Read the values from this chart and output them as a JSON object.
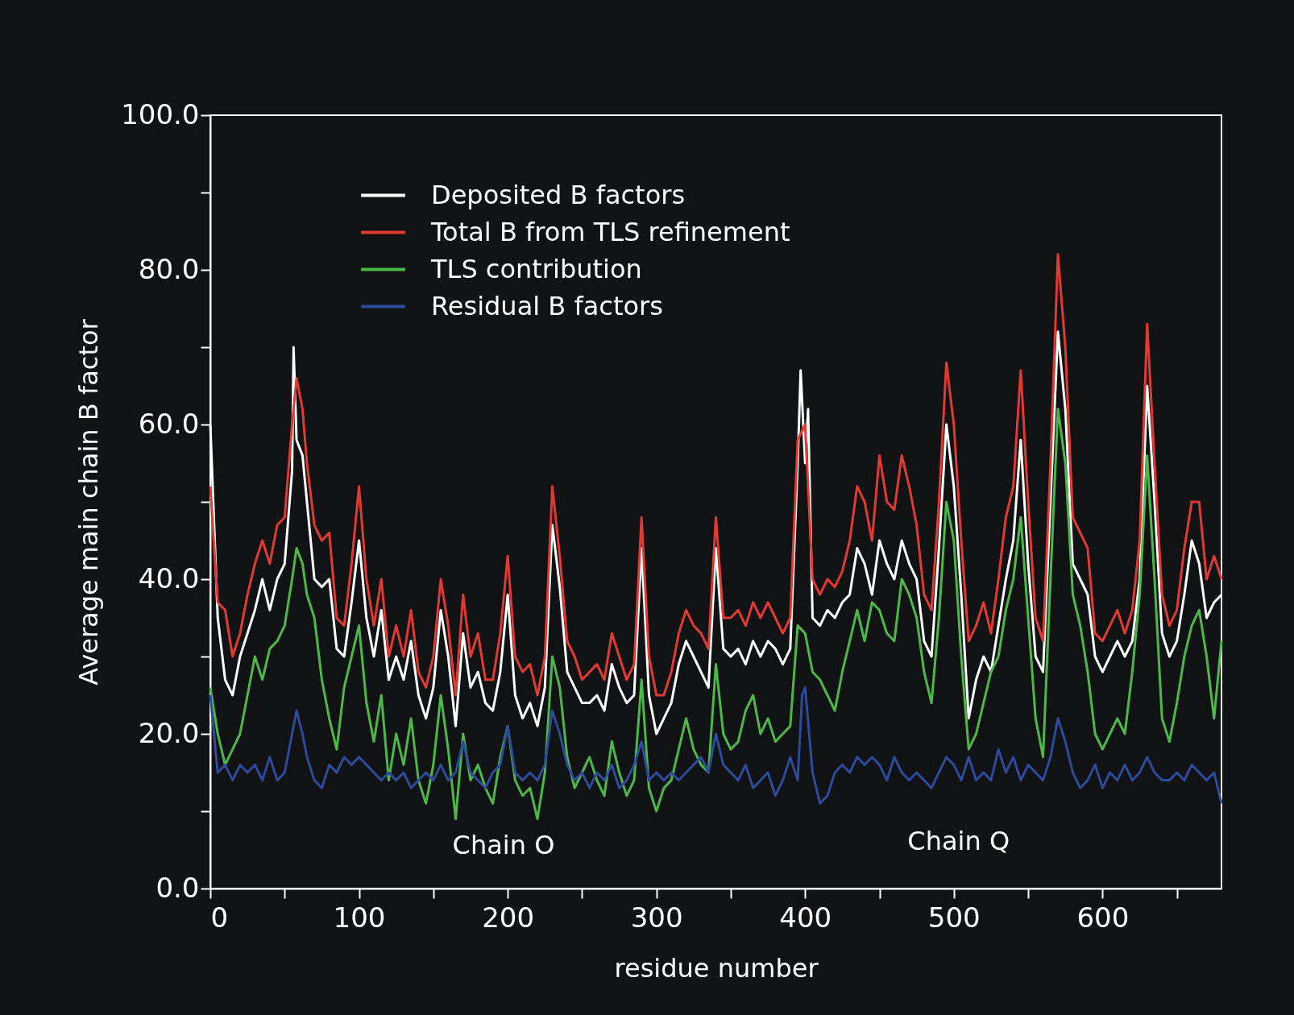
{
  "chart_data": {
    "type": "line",
    "xlabel": "residue number",
    "ylabel": "Average main chain B factor",
    "xlim": [
      0,
      680
    ],
    "xticks": [
      0,
      {
        "value": 50,
        "label": null
      },
      100,
      {
        "value": 150,
        "label": null
      },
      200,
      {
        "value": 250,
        "label": null
      },
      300,
      {
        "value": 350,
        "label": null
      },
      400,
      {
        "value": 450,
        "label": null
      },
      500,
      {
        "value": 550,
        "label": null
      },
      600,
      {
        "value": 650,
        "label": null
      }
    ],
    "ylim": [
      0,
      100
    ],
    "yticks": [
      {
        "value": 0,
        "label": "0.0"
      },
      {
        "value": 10,
        "label": null
      },
      {
        "value": 20,
        "label": "20.0"
      },
      {
        "value": 30,
        "label": null
      },
      {
        "value": 40,
        "label": "40.0"
      },
      {
        "value": 50,
        "label": null
      },
      {
        "value": 60,
        "label": "60.0"
      },
      {
        "value": 70,
        "label": null
      },
      {
        "value": 80,
        "label": "80.0"
      },
      {
        "value": 90,
        "label": null
      },
      {
        "value": 100,
        "label": "100.0"
      }
    ],
    "grid": false,
    "legend": "top left",
    "annotations": [
      "Chain O",
      "Chain Q"
    ],
    "series": [
      {
        "name": "Deposited B factors",
        "color": "#ffffff",
        "x": [
          0,
          5,
          10,
          15,
          20,
          25,
          30,
          35,
          40,
          45,
          50,
          55,
          56,
          58,
          62,
          65,
          70,
          75,
          80,
          85,
          90,
          95,
          100,
          105,
          110,
          115,
          120,
          125,
          130,
          135,
          140,
          145,
          150,
          155,
          160,
          165,
          170,
          175,
          180,
          185,
          190,
          195,
          200,
          205,
          210,
          215,
          220,
          225,
          230,
          235,
          240,
          245,
          250,
          255,
          260,
          265,
          270,
          275,
          280,
          285,
          290,
          295,
          300,
          305,
          310,
          315,
          320,
          325,
          330,
          335,
          340,
          345,
          350,
          355,
          360,
          365,
          370,
          375,
          380,
          385,
          390,
          395,
          397,
          400,
          402,
          405,
          410,
          415,
          420,
          425,
          430,
          435,
          440,
          445,
          450,
          455,
          460,
          465,
          470,
          475,
          480,
          485,
          490,
          495,
          500,
          505,
          510,
          515,
          520,
          525,
          530,
          535,
          540,
          545,
          550,
          555,
          560,
          565,
          570,
          575,
          580,
          585,
          590,
          595,
          600,
          605,
          610,
          615,
          620,
          625,
          630,
          635,
          640,
          645,
          650,
          655,
          660,
          665,
          670,
          675,
          680
        ],
        "values": [
          60,
          35,
          27,
          25,
          30,
          33,
          36,
          40,
          36,
          40,
          42,
          54,
          70,
          58,
          56,
          50,
          40,
          39,
          40,
          31,
          30,
          37,
          45,
          35,
          30,
          36,
          27,
          30,
          27,
          32,
          25,
          22,
          26,
          36,
          30,
          21,
          33,
          26,
          28,
          24,
          23,
          28,
          38,
          25,
          22,
          24,
          21,
          26,
          47,
          39,
          28,
          26,
          24,
          24,
          25,
          23,
          29,
          26,
          24,
          25,
          44,
          25,
          20,
          22,
          24,
          29,
          32,
          30,
          28,
          26,
          44,
          31,
          30,
          31,
          29,
          32,
          30,
          32,
          31,
          29,
          31,
          55,
          67,
          55,
          62,
          35,
          34,
          36,
          35,
          37,
          38,
          44,
          42,
          38,
          45,
          42,
          40,
          45,
          42,
          40,
          32,
          30,
          44,
          60,
          52,
          38,
          22,
          27,
          30,
          28,
          34,
          40,
          45,
          58,
          42,
          30,
          28,
          50,
          72,
          62,
          42,
          40,
          38,
          30,
          28,
          30,
          32,
          30,
          32,
          40,
          65,
          50,
          33,
          30,
          32,
          38,
          45,
          42,
          35,
          37,
          38
        ]
      },
      {
        "name": "Total B from TLS refinement",
        "color": "#e03a33",
        "x": [
          0,
          5,
          10,
          15,
          20,
          25,
          30,
          35,
          40,
          45,
          50,
          55,
          58,
          62,
          65,
          70,
          75,
          80,
          85,
          90,
          95,
          100,
          105,
          110,
          115,
          120,
          125,
          130,
          135,
          140,
          145,
          150,
          155,
          160,
          165,
          170,
          175,
          180,
          185,
          190,
          195,
          200,
          205,
          210,
          215,
          220,
          225,
          230,
          235,
          240,
          245,
          250,
          255,
          260,
          265,
          270,
          275,
          280,
          285,
          290,
          295,
          300,
          305,
          310,
          315,
          320,
          325,
          330,
          335,
          340,
          345,
          350,
          355,
          360,
          365,
          370,
          375,
          380,
          385,
          390,
          395,
          400,
          405,
          410,
          415,
          420,
          425,
          430,
          435,
          440,
          445,
          450,
          455,
          460,
          465,
          470,
          475,
          480,
          485,
          490,
          495,
          500,
          505,
          510,
          515,
          520,
          525,
          530,
          535,
          540,
          545,
          550,
          555,
          560,
          565,
          570,
          575,
          580,
          585,
          590,
          595,
          600,
          605,
          610,
          615,
          620,
          625,
          630,
          635,
          640,
          645,
          650,
          655,
          660,
          665,
          670,
          675,
          680
        ],
        "values": [
          52,
          37,
          36,
          30,
          33,
          38,
          42,
          45,
          42,
          47,
          48,
          60,
          66,
          62,
          55,
          47,
          45,
          46,
          35,
          34,
          42,
          52,
          40,
          34,
          40,
          30,
          34,
          30,
          36,
          28,
          26,
          30,
          40,
          34,
          25,
          38,
          30,
          33,
          27,
          27,
          33,
          43,
          30,
          28,
          29,
          25,
          30,
          52,
          43,
          32,
          30,
          27,
          28,
          29,
          27,
          33,
          30,
          27,
          29,
          48,
          30,
          25,
          25,
          28,
          33,
          36,
          34,
          33,
          31,
          48,
          35,
          35,
          36,
          34,
          37,
          35,
          37,
          35,
          33,
          35,
          58,
          60,
          40,
          38,
          40,
          39,
          41,
          45,
          52,
          50,
          45,
          56,
          50,
          49,
          56,
          52,
          47,
          38,
          36,
          50,
          68,
          60,
          45,
          32,
          34,
          37,
          33,
          40,
          48,
          52,
          67,
          50,
          35,
          32,
          55,
          82,
          70,
          48,
          46,
          44,
          33,
          32,
          34,
          36,
          33,
          36,
          45,
          73,
          55,
          38,
          34,
          36,
          44,
          50,
          50,
          40,
          43,
          40
        ]
      },
      {
        "name": "TLS contribution",
        "color": "#4cb848",
        "x": [
          0,
          5,
          10,
          15,
          20,
          25,
          30,
          35,
          40,
          45,
          50,
          55,
          58,
          62,
          65,
          70,
          75,
          80,
          85,
          90,
          95,
          100,
          105,
          110,
          115,
          120,
          125,
          130,
          135,
          140,
          145,
          150,
          155,
          160,
          165,
          170,
          175,
          180,
          185,
          190,
          195,
          200,
          205,
          210,
          215,
          220,
          225,
          230,
          235,
          240,
          245,
          250,
          255,
          260,
          265,
          270,
          275,
          280,
          285,
          290,
          295,
          300,
          305,
          310,
          315,
          320,
          325,
          330,
          335,
          340,
          345,
          350,
          355,
          360,
          365,
          370,
          375,
          380,
          385,
          390,
          395,
          400,
          405,
          410,
          415,
          420,
          425,
          430,
          435,
          440,
          445,
          450,
          455,
          460,
          465,
          470,
          475,
          480,
          485,
          490,
          495,
          500,
          505,
          510,
          515,
          520,
          525,
          530,
          535,
          540,
          545,
          550,
          555,
          560,
          565,
          570,
          575,
          580,
          585,
          590,
          595,
          600,
          605,
          610,
          615,
          620,
          625,
          630,
          635,
          640,
          645,
          650,
          655,
          660,
          665,
          670,
          675,
          680
        ],
        "values": [
          26,
          20,
          16,
          18,
          20,
          25,
          30,
          27,
          31,
          32,
          34,
          40,
          44,
          42,
          38,
          35,
          27,
          22,
          18,
          26,
          30,
          34,
          24,
          19,
          25,
          14,
          20,
          16,
          22,
          14,
          11,
          16,
          25,
          18,
          9,
          20,
          14,
          16,
          13,
          11,
          17,
          21,
          14,
          12,
          13,
          9,
          15,
          30,
          26,
          17,
          13,
          15,
          17,
          14,
          12,
          19,
          15,
          12,
          14,
          27,
          13,
          10,
          13,
          14,
          18,
          22,
          18,
          16,
          15,
          29,
          20,
          18,
          19,
          23,
          25,
          20,
          22,
          19,
          20,
          21,
          34,
          33,
          28,
          27,
          25,
          23,
          28,
          32,
          36,
          32,
          37,
          36,
          33,
          32,
          40,
          38,
          35,
          28,
          24,
          35,
          50,
          45,
          30,
          18,
          20,
          24,
          28,
          30,
          36,
          40,
          48,
          35,
          22,
          17,
          40,
          62,
          55,
          38,
          34,
          28,
          20,
          18,
          20,
          22,
          20,
          28,
          38,
          56,
          40,
          22,
          19,
          24,
          30,
          34,
          36,
          30,
          22,
          32
        ]
      },
      {
        "name": "Residual B factors",
        "color": "#2e4a9a",
        "x": [
          0,
          5,
          10,
          15,
          20,
          25,
          30,
          35,
          40,
          45,
          50,
          55,
          58,
          62,
          65,
          70,
          75,
          80,
          85,
          90,
          95,
          100,
          105,
          110,
          115,
          120,
          125,
          130,
          135,
          140,
          145,
          150,
          155,
          160,
          165,
          170,
          175,
          180,
          185,
          190,
          195,
          200,
          205,
          210,
          215,
          220,
          225,
          230,
          235,
          240,
          245,
          250,
          255,
          260,
          265,
          270,
          275,
          280,
          285,
          290,
          295,
          300,
          305,
          310,
          315,
          320,
          325,
          330,
          335,
          340,
          345,
          350,
          355,
          360,
          365,
          370,
          375,
          380,
          385,
          390,
          395,
          398,
          400,
          405,
          410,
          415,
          420,
          425,
          430,
          435,
          440,
          445,
          450,
          455,
          460,
          465,
          470,
          475,
          480,
          485,
          490,
          495,
          500,
          505,
          510,
          515,
          520,
          525,
          530,
          535,
          540,
          545,
          550,
          555,
          560,
          565,
          570,
          575,
          580,
          585,
          590,
          595,
          600,
          605,
          610,
          615,
          620,
          625,
          630,
          635,
          640,
          645,
          650,
          655,
          660,
          665,
          670,
          675,
          680
        ],
        "values": [
          25,
          15,
          16,
          14,
          16,
          15,
          16,
          14,
          17,
          14,
          15,
          20,
          23,
          20,
          17,
          14,
          13,
          16,
          15,
          17,
          16,
          17,
          16,
          15,
          14,
          15,
          14,
          15,
          13,
          14,
          15,
          14,
          16,
          14,
          15,
          19,
          15,
          14,
          13,
          15,
          16,
          21,
          15,
          14,
          15,
          14,
          16,
          23,
          20,
          16,
          14,
          15,
          13,
          15,
          14,
          16,
          13,
          14,
          16,
          19,
          14,
          15,
          14,
          15,
          14,
          15,
          16,
          17,
          15,
          20,
          16,
          15,
          14,
          16,
          13,
          14,
          15,
          12,
          14,
          17,
          14,
          25,
          26,
          15,
          11,
          12,
          15,
          16,
          15,
          17,
          16,
          17,
          16,
          14,
          17,
          15,
          14,
          15,
          14,
          13,
          15,
          17,
          16,
          14,
          17,
          14,
          15,
          14,
          18,
          15,
          17,
          14,
          16,
          15,
          14,
          17,
          22,
          19,
          15,
          13,
          14,
          16,
          13,
          15,
          14,
          16,
          14,
          15,
          17,
          15,
          14,
          14,
          15,
          14,
          16,
          15,
          14,
          15,
          11
        ]
      }
    ]
  }
}
